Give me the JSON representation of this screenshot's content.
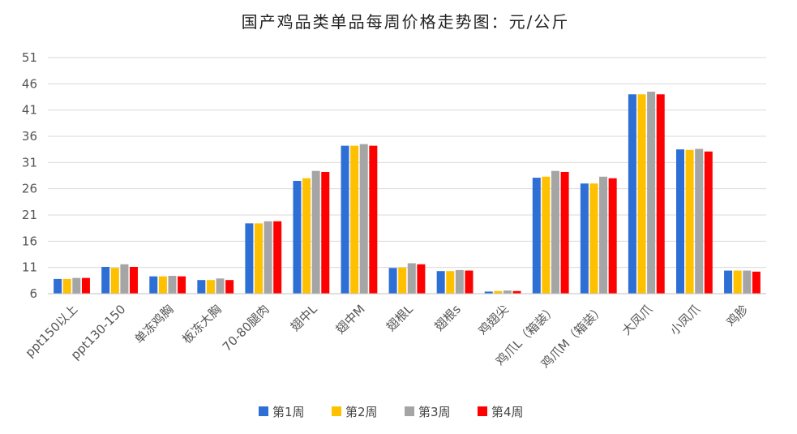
{
  "chart_data": {
    "type": "bar",
    "title": "国产鸡品类单品每周价格走势图：元/公斤",
    "xlabel": "",
    "ylabel": "",
    "ylim": [
      6,
      51
    ],
    "yticks": [
      6,
      11,
      16,
      21,
      26,
      31,
      36,
      41,
      46,
      51
    ],
    "grid": true,
    "legend_position": "bottom",
    "categories": [
      "ppt150以上",
      "ppt130-150",
      "单冻鸡胸",
      "板冻大胸",
      "70-80腿肉",
      "翅中L",
      "翅中M",
      "翅根L",
      "翅根s",
      "鸡翅尖",
      "鸡爪L（箱装）",
      "鸡爪M（箱装）",
      "大凤爪",
      "小凤爪",
      "鸡胗"
    ],
    "series": [
      {
        "name": "第1周",
        "color": "#2e6fd6",
        "values": [
          8.8,
          11.1,
          9.3,
          8.6,
          19.4,
          27.5,
          34.2,
          10.9,
          10.3,
          6.4,
          28.1,
          27.0,
          44.0,
          33.5,
          10.4
        ]
      },
      {
        "name": "第2周",
        "color": "#ffc000",
        "values": [
          8.8,
          10.9,
          9.3,
          8.6,
          19.4,
          28.0,
          34.2,
          11.0,
          10.3,
          6.5,
          28.3,
          27.0,
          44.0,
          33.4,
          10.4
        ]
      },
      {
        "name": "第3周",
        "color": "#a5a5a5",
        "values": [
          9.0,
          11.6,
          9.4,
          8.9,
          19.8,
          29.4,
          34.5,
          11.8,
          10.5,
          6.6,
          29.4,
          28.3,
          44.5,
          33.6,
          10.4
        ]
      },
      {
        "name": "第4周",
        "color": "#ff0000",
        "values": [
          9.0,
          11.1,
          9.3,
          8.6,
          19.8,
          29.2,
          34.2,
          11.6,
          10.4,
          6.5,
          29.2,
          28.0,
          44.0,
          33.1,
          10.2
        ]
      }
    ]
  }
}
